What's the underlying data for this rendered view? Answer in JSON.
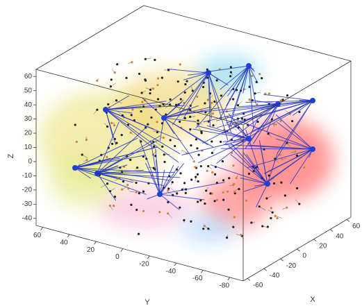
{
  "chart_data": {
    "type": "scatter3d",
    "xlabel": "X",
    "ylabel": "Y",
    "zlabel": "Z",
    "xlim": [
      -65,
      65
    ],
    "ylim": [
      65,
      -90
    ],
    "zlim": [
      -45,
      65
    ],
    "xticks": [
      -60,
      -40,
      -20,
      0,
      20,
      40,
      60
    ],
    "yticks": [
      60,
      40,
      20,
      0,
      -20,
      -40,
      -60,
      -80
    ],
    "zticks": [
      60,
      50,
      40,
      30,
      20,
      10,
      0,
      -10,
      -20,
      -30,
      -40
    ]
  }
}
